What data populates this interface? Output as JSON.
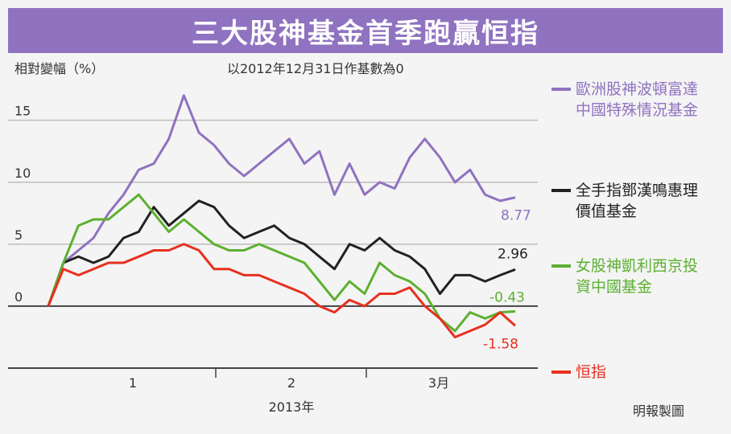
{
  "chart_data": {
    "type": "line",
    "title": "三大股神基金首季跑贏恒指",
    "ylabel": "相對變幅（%）",
    "note": "以2012年12月31日作基數為0",
    "source": "明報製圖",
    "xlabel": "2013年",
    "x_ticks": [
      "1",
      "2",
      "3月"
    ],
    "y_ticks": [
      "0",
      "5",
      "10",
      "15"
    ],
    "ylim": [
      -5,
      19
    ],
    "grid": true,
    "series": [
      {
        "name": "歐洲股神波頓富達中國特殊情況基金",
        "color": "#8f72c0",
        "end_label": "8.77",
        "values": [
          0,
          3.5,
          4.5,
          5.5,
          7.5,
          9,
          11,
          11.5,
          13.5,
          17,
          14,
          13,
          11.5,
          10.5,
          11.5,
          12.5,
          13.5,
          11.5,
          12.5,
          9,
          11.5,
          9,
          10,
          9.5,
          12,
          13.5,
          12,
          10,
          11,
          9,
          8.5,
          8.77
        ]
      },
      {
        "name": "全手指鄧漢鳴惠理價值基金",
        "color": "#222222",
        "end_label": "2.96",
        "values": [
          0,
          3.5,
          4,
          3.5,
          4,
          5.5,
          6,
          8,
          6.5,
          7.5,
          8.5,
          8,
          6.5,
          5.5,
          6,
          6.5,
          5.5,
          5,
          4,
          3,
          5,
          4.5,
          5.5,
          4.5,
          4,
          3,
          1,
          2.5,
          2.5,
          2,
          2.5,
          2.96
        ]
      },
      {
        "name": "女股神凱利西京投資中國基金",
        "color": "#5cb030",
        "end_label": "-0.43",
        "values": [
          0,
          3.5,
          6.5,
          7,
          7,
          8,
          9,
          7.5,
          6,
          7,
          6,
          5,
          4.5,
          4.5,
          5,
          4.5,
          4,
          3.5,
          2,
          0.5,
          2,
          1,
          3.5,
          2.5,
          2,
          1,
          -1,
          -2,
          -0.5,
          -1,
          -0.5,
          -0.43
        ]
      },
      {
        "name": "恒指",
        "color": "#e83020",
        "end_label": "-1.58",
        "values": [
          0,
          3,
          2.5,
          3,
          3.5,
          3.5,
          4,
          4.5,
          4.5,
          5,
          4.5,
          3,
          3,
          2.5,
          2.5,
          2,
          1.5,
          1,
          0,
          -0.5,
          0.5,
          0,
          1,
          1,
          1.5,
          0,
          -1,
          -2.5,
          -2,
          -1.5,
          -0.5,
          -1.58
        ]
      }
    ]
  }
}
